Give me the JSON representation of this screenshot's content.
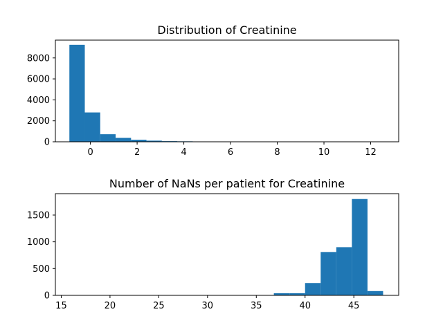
{
  "chart_data": [
    {
      "type": "bar",
      "title": "Distribution of Creatinine",
      "xlabel": "",
      "ylabel": "",
      "xlim": [
        -1.5,
        13.2
      ],
      "ylim": [
        0,
        9700
      ],
      "xticks": [
        0,
        2,
        4,
        6,
        8,
        10,
        12
      ],
      "yticks": [
        0,
        2000,
        4000,
        6000,
        8000
      ],
      "bar_color": "#1f77b4",
      "bins": [
        {
          "x0": -0.9,
          "x1": -0.24,
          "value": 9250
        },
        {
          "x0": -0.24,
          "x1": 0.42,
          "value": 2800
        },
        {
          "x0": 0.42,
          "x1": 1.08,
          "value": 720
        },
        {
          "x0": 1.08,
          "x1": 1.74,
          "value": 380
        },
        {
          "x0": 1.74,
          "x1": 2.4,
          "value": 200
        },
        {
          "x0": 2.4,
          "x1": 3.06,
          "value": 110
        },
        {
          "x0": 3.06,
          "x1": 3.72,
          "value": 60
        },
        {
          "x0": 3.72,
          "x1": 4.38,
          "value": 45
        },
        {
          "x0": 4.38,
          "x1": 5.04,
          "value": 20
        },
        {
          "x0": 5.04,
          "x1": 5.7,
          "value": 12
        },
        {
          "x0": 5.7,
          "x1": 6.36,
          "value": 8
        },
        {
          "x0": 6.36,
          "x1": 7.02,
          "value": 6
        },
        {
          "x0": 7.02,
          "x1": 7.68,
          "value": 4
        },
        {
          "x0": 7.68,
          "x1": 8.34,
          "value": 3
        },
        {
          "x0": 8.34,
          "x1": 9.0,
          "value": 2
        },
        {
          "x0": 9.0,
          "x1": 9.66,
          "value": 2
        },
        {
          "x0": 9.66,
          "x1": 10.32,
          "value": 1
        },
        {
          "x0": 10.32,
          "x1": 10.98,
          "value": 1
        },
        {
          "x0": 10.98,
          "x1": 11.64,
          "value": 1
        },
        {
          "x0": 11.64,
          "x1": 12.3,
          "value": 1
        }
      ]
    },
    {
      "type": "bar",
      "title": "Number of NaNs per patient for Creatinine",
      "xlabel": "",
      "ylabel": "",
      "xlim": [
        14.4,
        49.6
      ],
      "ylim": [
        0,
        1900
      ],
      "xticks": [
        15,
        20,
        25,
        30,
        35,
        40,
        45
      ],
      "yticks": [
        0,
        500,
        1000,
        1500
      ],
      "bar_color": "#1f77b4",
      "bins": [
        {
          "x0": 16,
          "x1": 17.6,
          "value": 0
        },
        {
          "x0": 17.6,
          "x1": 19.2,
          "value": 0
        },
        {
          "x0": 19.2,
          "x1": 20.8,
          "value": 0
        },
        {
          "x0": 20.8,
          "x1": 22.4,
          "value": 0
        },
        {
          "x0": 22.4,
          "x1": 24.0,
          "value": 0
        },
        {
          "x0": 24.0,
          "x1": 25.6,
          "value": 0
        },
        {
          "x0": 25.6,
          "x1": 27.2,
          "value": 3
        },
        {
          "x0": 27.2,
          "x1": 28.8,
          "value": 0
        },
        {
          "x0": 28.8,
          "x1": 30.4,
          "value": 0
        },
        {
          "x0": 30.4,
          "x1": 32.0,
          "value": 0
        },
        {
          "x0": 32.0,
          "x1": 33.6,
          "value": 4
        },
        {
          "x0": 33.6,
          "x1": 35.2,
          "value": 6
        },
        {
          "x0": 35.2,
          "x1": 36.8,
          "value": 0
        },
        {
          "x0": 36.8,
          "x1": 38.4,
          "value": 40
        },
        {
          "x0": 38.4,
          "x1": 40.0,
          "value": 40
        },
        {
          "x0": 40.0,
          "x1": 41.6,
          "value": 230
        },
        {
          "x0": 41.6,
          "x1": 43.2,
          "value": 810
        },
        {
          "x0": 43.2,
          "x1": 44.8,
          "value": 900
        },
        {
          "x0": 44.8,
          "x1": 46.4,
          "value": 1800
        },
        {
          "x0": 46.4,
          "x1": 48.0,
          "value": 80
        }
      ]
    }
  ]
}
